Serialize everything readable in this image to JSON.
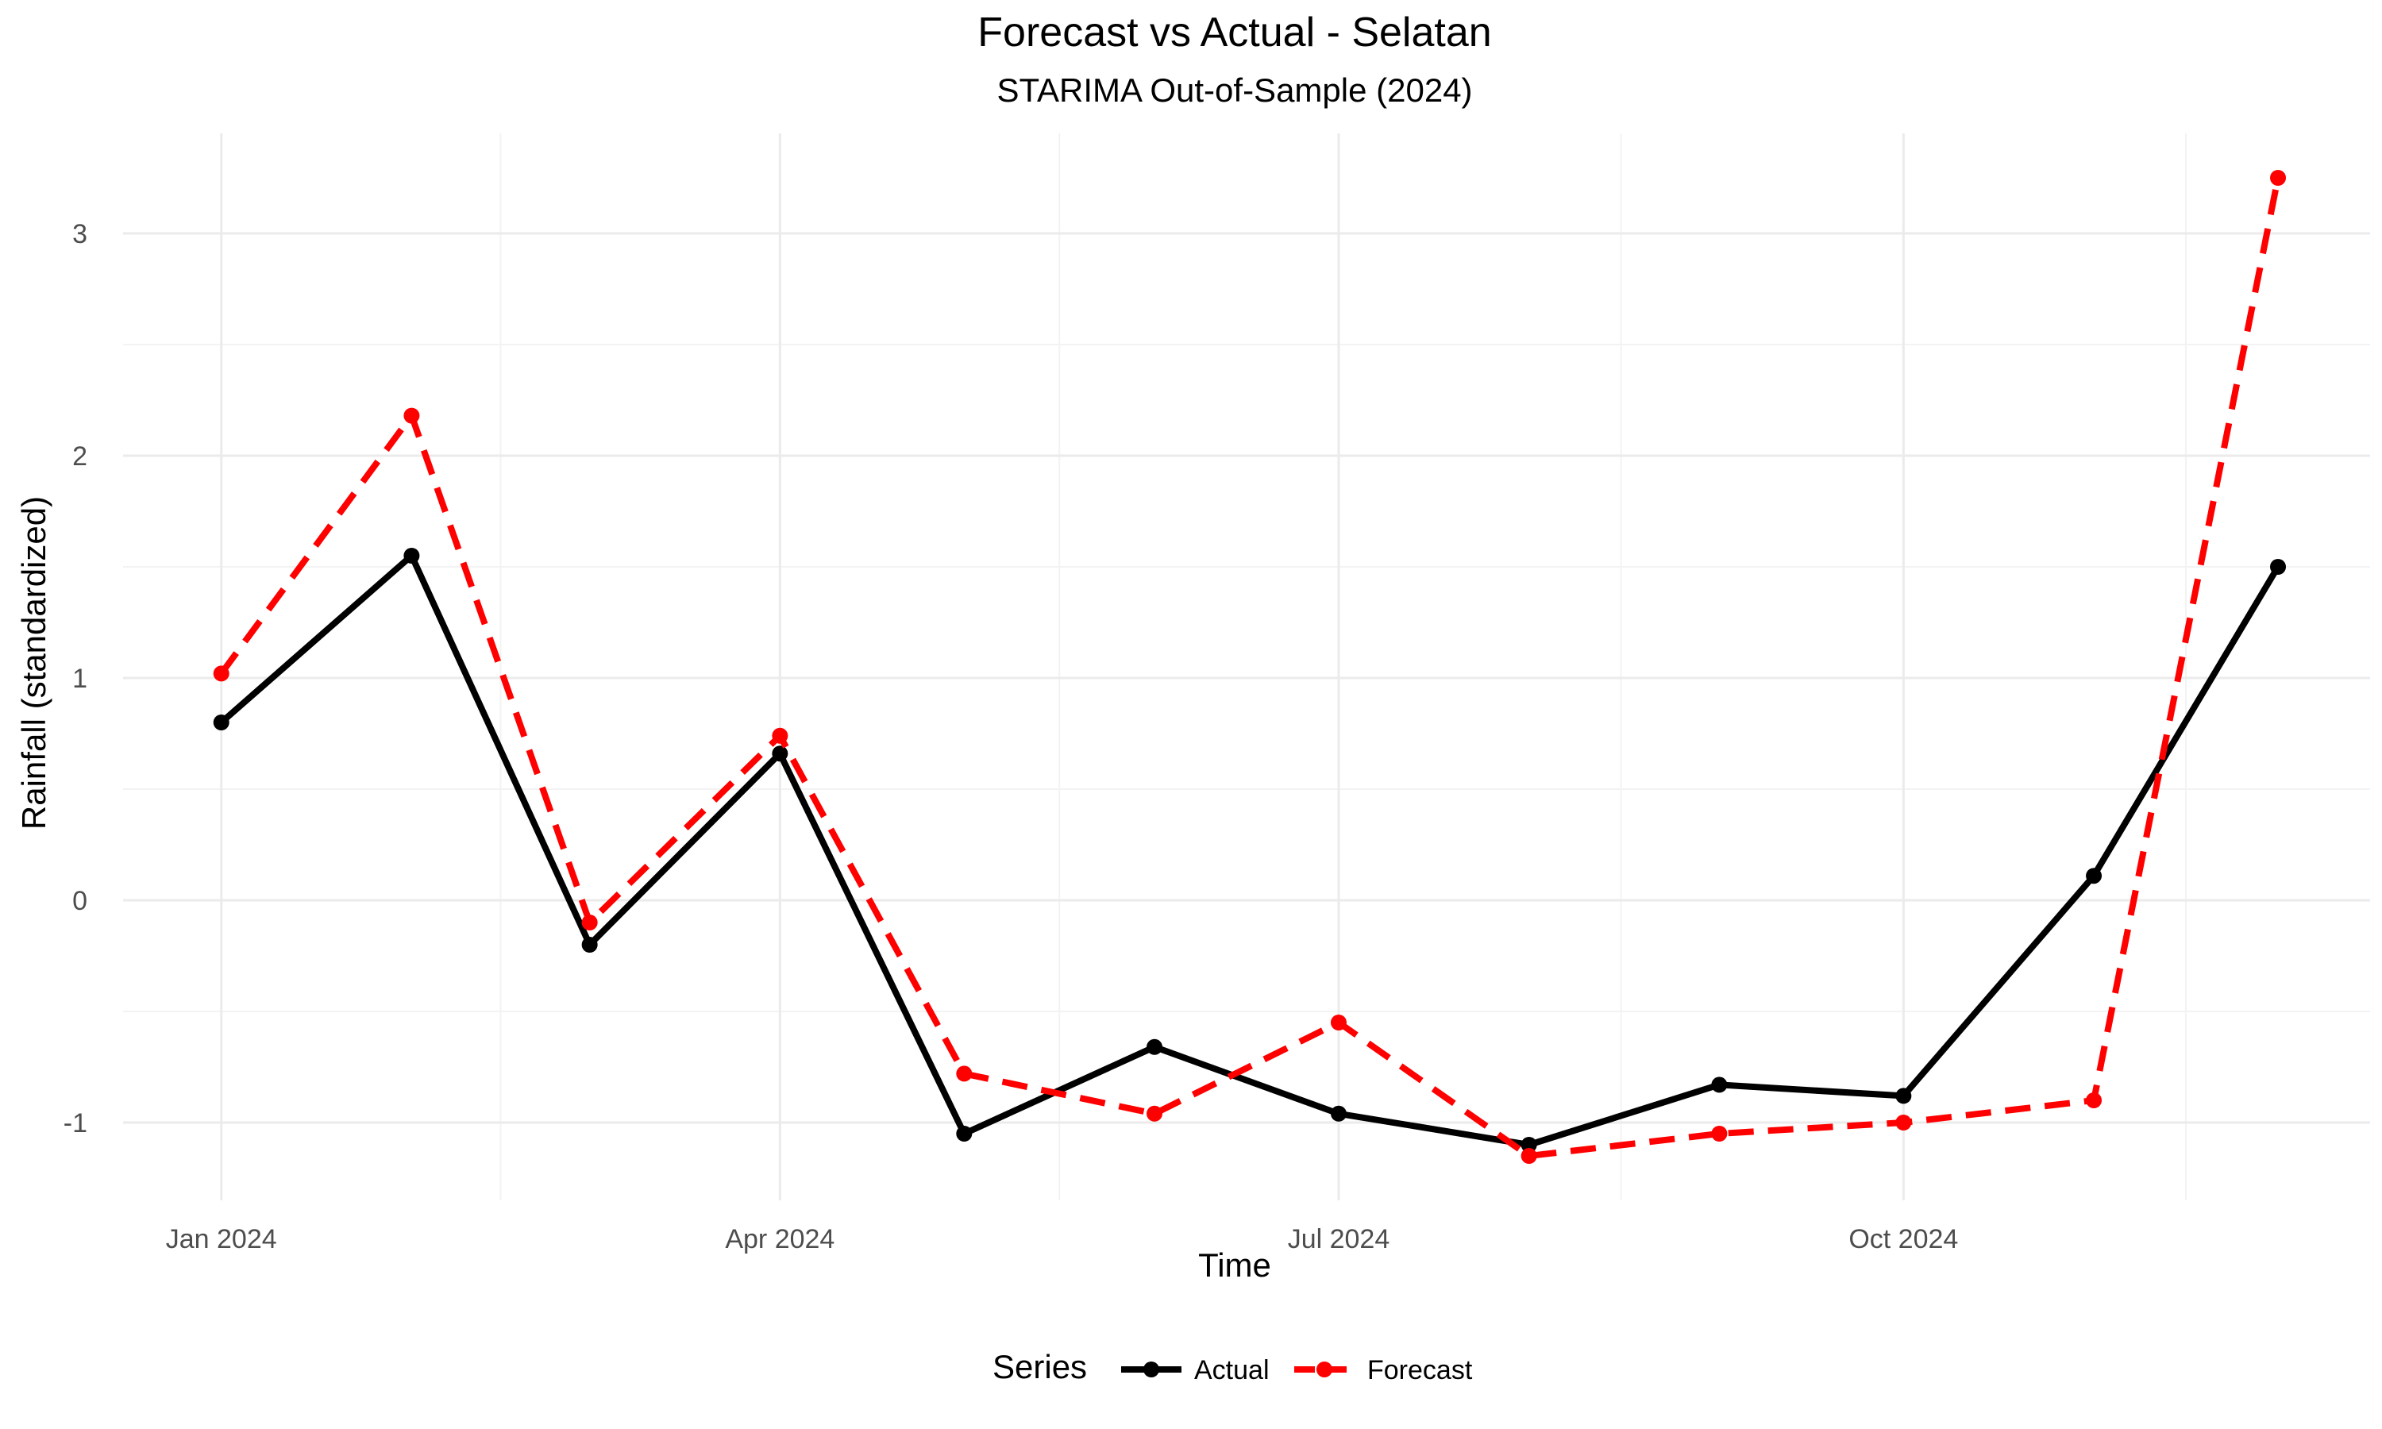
{
  "chart_data": {
    "type": "line",
    "title": "Forecast vs Actual - Selatan",
    "subtitle": "STARIMA Out-of-Sample (2024)",
    "xlabel": "Time",
    "ylabel": "Rainfall (standardized)",
    "x": [
      "2024-01-01",
      "2024-02-01",
      "2024-03-01",
      "2024-04-01",
      "2024-05-01",
      "2024-06-01",
      "2024-07-01",
      "2024-08-01",
      "2024-09-01",
      "2024-10-01",
      "2024-11-01",
      "2024-12-01"
    ],
    "x_ticks": [
      {
        "date": "2024-01-01",
        "label": "Jan 2024"
      },
      {
        "date": "2024-04-01",
        "label": "Apr 2024"
      },
      {
        "date": "2024-07-01",
        "label": "Jul 2024"
      },
      {
        "date": "2024-10-01",
        "label": "Oct 2024"
      }
    ],
    "xlim": [
      "2023-12-16",
      "2024-12-16"
    ],
    "y_ticks": [
      -1,
      0,
      1,
      2,
      3
    ],
    "ylim": [
      -1.35,
      3.45
    ],
    "grid": true,
    "legend_title": "Series",
    "legend_position": "bottom",
    "series": [
      {
        "name": "Actual",
        "color": "#000000",
        "dashed": false,
        "values": [
          0.8,
          1.55,
          -0.2,
          0.66,
          -1.05,
          -0.66,
          -0.96,
          -1.1,
          -0.83,
          -0.88,
          0.11,
          1.5
        ]
      },
      {
        "name": "Forecast",
        "color": "#ff0000",
        "dashed": true,
        "values": [
          1.02,
          2.18,
          -0.1,
          0.74,
          -0.78,
          -0.96,
          -0.55,
          -1.15,
          -1.05,
          -1.0,
          -0.9,
          3.25
        ]
      }
    ]
  }
}
